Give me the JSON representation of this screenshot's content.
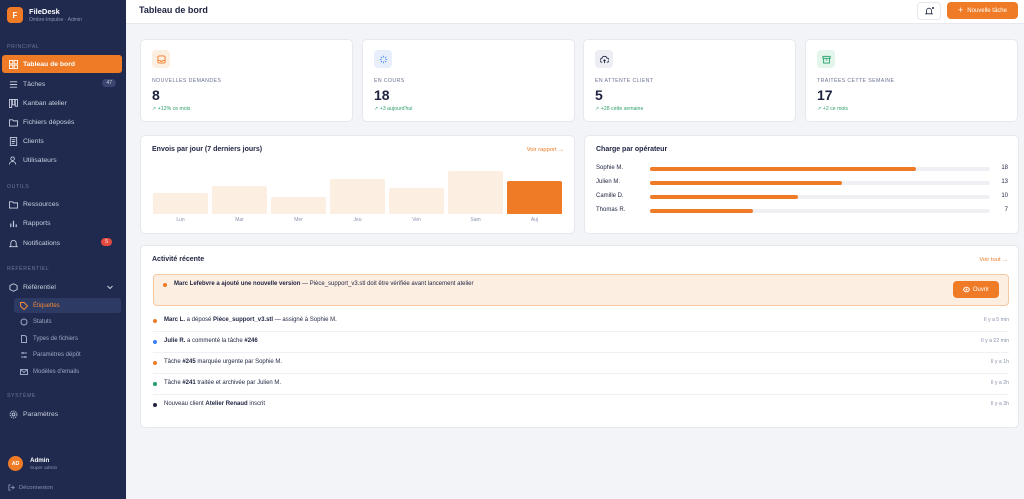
{
  "app": {
    "name": "FileDesk",
    "subtitle": "Ombre-Impulse · Admin",
    "logo_letter": "F"
  },
  "colors": {
    "accent": "#f07b26",
    "sidebar_bg": "#1f2a4e",
    "success": "#2e9e6b",
    "danger": "#e2493f",
    "info": "#3b82f6",
    "green": "#22a06b",
    "navy": "#1e2340"
  },
  "sidebar": {
    "sections": {
      "principal": "PRINCIPAL",
      "outils": "OUTILS",
      "referentiel": "RÉFÉRENTIEL",
      "systeme": "SYSTÈME"
    },
    "items": {
      "dashboard": {
        "label": "Tableau de bord",
        "icon": "grid-icon"
      },
      "tasks": {
        "label": "Tâches",
        "icon": "list-icon",
        "badge": "47"
      },
      "kanban": {
        "label": "Kanban atelier",
        "icon": "kanban-icon"
      },
      "files": {
        "label": "Fichiers déposés",
        "icon": "folder-icon"
      },
      "clients": {
        "label": "Clients",
        "icon": "doc-icon"
      },
      "users": {
        "label": "Utilisateurs",
        "icon": "users-icon"
      },
      "resources": {
        "label": "Ressources",
        "icon": "folder-icon"
      },
      "reports": {
        "label": "Rapports",
        "icon": "bar-chart-icon"
      },
      "notifications": {
        "label": "Notifications",
        "icon": "bell-icon",
        "badge": "5"
      },
      "referentiel": {
        "label": "Référentiel",
        "icon": "box-icon"
      },
      "settings": {
        "label": "Paramètres",
        "icon": "gear-icon"
      }
    },
    "sub_items": {
      "tags": "Étiquettes",
      "statuses": "Statuts",
      "file_types": "Types de fichiers",
      "deposit_params": "Paramètres dépôt",
      "email_templates": "Modèles d'emails"
    },
    "user": {
      "initials": "AD",
      "name": "Admin",
      "role": "Super admin"
    },
    "logout": "Déconnexion"
  },
  "header": {
    "title": "Tableau de bord",
    "new_task": "Nouvelle tâche"
  },
  "stats": [
    {
      "label": "NOUVELLES DEMANDES",
      "value": "8",
      "delta": "↗ +12% ce mois",
      "icon": "inbox-icon",
      "tint": "#fdeee2",
      "color": "#f07b26"
    },
    {
      "label": "EN COURS",
      "value": "18",
      "delta": "↗ +3 aujourd'hui",
      "icon": "loader-icon",
      "tint": "#e8eefc",
      "color": "#3b82f6"
    },
    {
      "label": "EN ATTENTE CLIENT",
      "value": "5",
      "delta": "↗ +28 cette semaine",
      "icon": "cloud-upload-icon",
      "tint": "#eceef4",
      "color": "#1e2340"
    },
    {
      "label": "TRAITÉES CETTE SEMAINE",
      "value": "17",
      "delta": "↗ +2 ce mois",
      "icon": "archive-icon",
      "tint": "#e4f5ec",
      "color": "#22a06b"
    }
  ],
  "shipments": {
    "title": "Envois par jour (7 derniers jours)",
    "link": "Voir rapport →",
    "chart_data": {
      "type": "bar",
      "categories": [
        "Lun",
        "Mar",
        "Mer",
        "Jeu",
        "Ven",
        "Sam",
        "Auj"
      ],
      "values": [
        21,
        28,
        17,
        35,
        26,
        43,
        33
      ],
      "ylim": [
        0,
        44
      ],
      "highlight_index": 6
    }
  },
  "workload": {
    "title": "Charge par opérateur",
    "chart_data": {
      "type": "bar",
      "orientation": "horizontal",
      "categories": [
        "Sophie M.",
        "Julien M.",
        "Camille D.",
        "Thomas R."
      ],
      "values": [
        18,
        13,
        10,
        7
      ],
      "xlim": [
        0,
        23
      ]
    }
  },
  "activity": {
    "title": "Activité récente",
    "link": "Voir tout →",
    "highlight": {
      "bold": "Marc Lefebvre a ajouté une nouvelle version",
      "rest": " — Pièce_support_v3.stl doit être vérifiée avant lancement atelier",
      "button": "Ouvrir"
    },
    "rows": [
      {
        "pre": "",
        "bold1": "Marc L.",
        "mid": " a déposé ",
        "bold2": "Pièce_support_v3.stl",
        "post": " — assigné à Sophie M.",
        "time": "Il y a 5 min",
        "dot": "#f07b26"
      },
      {
        "pre": "",
        "bold1": "Julie R.",
        "mid": " a commenté la tâche ",
        "bold2": "#246",
        "post": "",
        "time": "Il y a 22 min",
        "dot": "#3b82f6"
      },
      {
        "pre": "Tâche ",
        "bold1": "",
        "mid": "",
        "bold2": "#245",
        "post": " marquée urgente par Sophie M.",
        "time": "Il y a 1h",
        "dot": "#f07b26"
      },
      {
        "pre": "Tâche ",
        "bold1": "",
        "mid": "",
        "bold2": "#241",
        "post": " traitée et archivée par Julien M.",
        "time": "Il y a 2h",
        "dot": "#22a06b"
      },
      {
        "pre": "Nouveau client ",
        "bold1": "",
        "mid": "",
        "bold2": "Atelier Renaud",
        "post": " inscrit",
        "time": "Il y a 3h",
        "dot": "#1e2340"
      }
    ]
  }
}
